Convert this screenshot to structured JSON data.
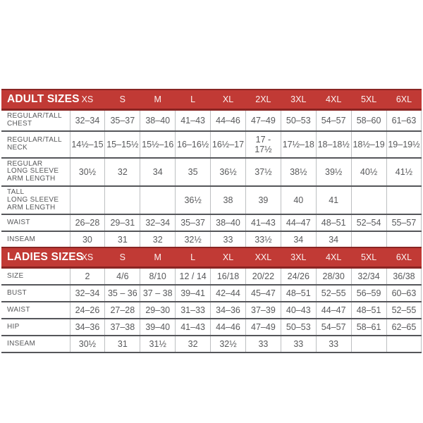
{
  "page": {
    "background": "#FFFFFF"
  },
  "colors": {
    "band_red": "#C13A35",
    "band_edge_dark_red": "#892523",
    "band_text": "#FFFFFF",
    "row_separator": "#55565A",
    "cell_border": "#BDBFC1",
    "text": "#58595B"
  },
  "tables": [
    {
      "title": "ADULT SIZES",
      "columns": [
        "XS",
        "S",
        "M",
        "L",
        "XL",
        "2XL",
        "3XL",
        "4XL",
        "5XL",
        "6XL"
      ],
      "rows": [
        {
          "label_lines": [
            "REGULAR/TALL",
            "CHEST"
          ],
          "values": [
            "32–34",
            "35–37",
            "38–40",
            "41–43",
            "44–46",
            "47–49",
            "50–53",
            "54–57",
            "58–60",
            "61–63"
          ]
        },
        {
          "label_lines": [
            "REGULAR/TALL",
            "NECK"
          ],
          "values": [
            "14½–15",
            "15–15½",
            "15½–16",
            "16–16½",
            "16½–17",
            "17 - 17½",
            "17½–18",
            "18–18½",
            "18½–19",
            "19–19½"
          ]
        },
        {
          "label_lines": [
            "REGULAR",
            "LONG SLEEVE",
            "ARM LENGTH"
          ],
          "values": [
            "30½",
            "32",
            "34",
            "35",
            "36½",
            "37½",
            "38½",
            "39½",
            "40½",
            "41½"
          ]
        },
        {
          "label_lines": [
            "TALL",
            "LONG SLEEVE",
            "ARM LENGTH"
          ],
          "values": [
            "",
            "",
            "",
            "36½",
            "38",
            "39",
            "40",
            "41",
            "",
            ""
          ]
        },
        {
          "label_lines": [
            "WAIST"
          ],
          "values": [
            "26–28",
            "29–31",
            "32–34",
            "35–37",
            "38–40",
            "41–43",
            "44–47",
            "48–51",
            "52–54",
            "55–57"
          ]
        },
        {
          "label_lines": [
            "INSEAM"
          ],
          "values": [
            "30",
            "31",
            "32",
            "32½",
            "33",
            "33½",
            "34",
            "34",
            "",
            ""
          ]
        }
      ]
    },
    {
      "title": "LADIES SIZES",
      "columns": [
        "XS",
        "S",
        "M",
        "L",
        "XL",
        "XXL",
        "3XL",
        "4XL",
        "5XL",
        "6XL"
      ],
      "rows": [
        {
          "label_lines": [
            "SIZE"
          ],
          "values": [
            "2",
            "4/6",
            "8/10",
            "12 / 14",
            "16/18",
            "20/22",
            "24/26",
            "28/30",
            "32/34",
            "36/38"
          ]
        },
        {
          "label_lines": [
            "BUST"
          ],
          "values": [
            "32–34",
            "35 – 36",
            "37 – 38",
            "39–41",
            "42–44",
            "45–47",
            "48–51",
            "52–55",
            "56–59",
            "60–63"
          ]
        },
        {
          "label_lines": [
            "WAIST"
          ],
          "values": [
            "24–26",
            "27–28",
            "29–30",
            "31–33",
            "34–36",
            "37–39",
            "40–43",
            "44–47",
            "48–51",
            "52–55"
          ]
        },
        {
          "label_lines": [
            "HIP"
          ],
          "values": [
            "34–36",
            "37–38",
            "39–40",
            "41–43",
            "44–46",
            "47–49",
            "50–53",
            "54–57",
            "58–61",
            "62–65"
          ]
        },
        {
          "label_lines": [
            "INSEAM"
          ],
          "values": [
            "30½",
            "31",
            "31½",
            "32",
            "32½",
            "33",
            "33",
            "33",
            "",
            ""
          ]
        }
      ]
    }
  ]
}
